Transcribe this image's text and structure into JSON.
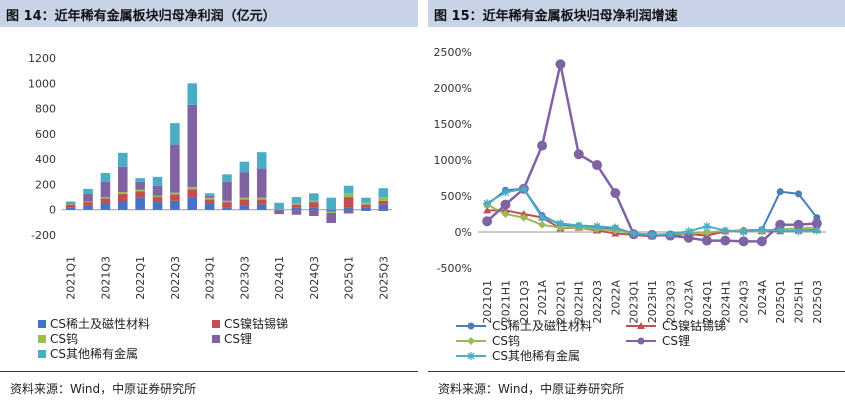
{
  "left": {
    "title": "图 14：近年稀有金属板块归母净利润（亿元）",
    "source": "资料来源：Wind，中原证券研究所"
  },
  "right": {
    "title": "图 15：近年稀有金属板块归母净利润增速",
    "source": "资料来源：Wind，中原证券研究所"
  },
  "chart_data": [
    {
      "type": "bar",
      "stacked": true,
      "unit": "亿元",
      "categories": [
        "2021Q1",
        "2021Q2",
        "2021Q3",
        "2021Q4",
        "2022Q1",
        "2022Q2",
        "2022Q3",
        "2022Q4",
        "2023Q1",
        "2023Q2",
        "2023Q3",
        "2023Q4",
        "2024Q1",
        "2024Q2",
        "2024Q3",
        "2024Q4",
        "2025Q1",
        "2025Q2",
        "2025Q3"
      ],
      "xtick_labels": [
        "2021Q1",
        "2021Q3",
        "2022Q1",
        "2022Q3",
        "2023Q1",
        "2023Q3",
        "2024Q1",
        "2024Q3",
        "2025Q1",
        "2025Q3"
      ],
      "ylim": [
        -200,
        1200
      ],
      "yticks": [
        -200,
        0,
        200,
        400,
        600,
        800,
        1000,
        1200
      ],
      "legend_position": "bottom",
      "series": [
        {
          "name": "CS稀土及磁性材料",
          "color": "#4472c4",
          "values": [
            20,
            30,
            45,
            65,
            95,
            60,
            70,
            100,
            50,
            20,
            30,
            40,
            0,
            15,
            20,
            -10,
            20,
            20,
            40
          ]
        },
        {
          "name": "CS镍钴锡锑",
          "color": "#c0504d",
          "values": [
            20,
            30,
            45,
            60,
            50,
            40,
            50,
            60,
            30,
            40,
            50,
            40,
            -5,
            25,
            40,
            -5,
            80,
            20,
            30
          ]
        },
        {
          "name": "CS钨",
          "color": "#9bbb59",
          "values": [
            5,
            5,
            10,
            15,
            15,
            10,
            15,
            20,
            15,
            10,
            15,
            15,
            5,
            10,
            10,
            -10,
            30,
            15,
            30
          ]
        },
        {
          "name": "CS锂",
          "color": "#8064a2",
          "values": [
            5,
            60,
            120,
            200,
            60,
            80,
            380,
            650,
            15,
            150,
            200,
            230,
            -30,
            -40,
            -50,
            -80,
            -30,
            -10,
            -10
          ]
        },
        {
          "name": "CS其他稀有金属",
          "color": "#4bacc6",
          "values": [
            15,
            40,
            70,
            110,
            30,
            70,
            170,
            170,
            20,
            60,
            85,
            130,
            50,
            50,
            60,
            95,
            60,
            40,
            70
          ]
        }
      ]
    },
    {
      "type": "line",
      "unit": "%",
      "categories": [
        "2021Q1",
        "2021H1",
        "2021Q3",
        "2021A",
        "2022Q1",
        "2022H1",
        "2022Q3",
        "2022A",
        "2023Q1",
        "2023H1",
        "2023Q3",
        "2023A",
        "2024Q1",
        "2024H1",
        "2024Q3",
        "2024A",
        "2025Q1",
        "2025H1",
        "2025Q3"
      ],
      "ylim": [
        -500,
        2500
      ],
      "yticks": [
        -500,
        0,
        500,
        1000,
        1500,
        2000,
        2500
      ],
      "ytick_labels": [
        "-500%",
        "0%",
        "500%",
        "1000%",
        "1500%",
        "2000%",
        "2500%"
      ],
      "legend_position": "bottom",
      "series": [
        {
          "name": "CS稀土及磁性材料",
          "color": "#4a7ebb",
          "marker": "circle",
          "values": [
            380,
            580,
            600,
            230,
            100,
            80,
            60,
            50,
            -30,
            -40,
            -50,
            -20,
            -10,
            10,
            20,
            30,
            560,
            530,
            200
          ]
        },
        {
          "name": "CS镍钴锡锑",
          "color": "#c0504d",
          "marker": "triangle",
          "values": [
            300,
            300,
            250,
            200,
            50,
            60,
            20,
            -20,
            -40,
            -60,
            -30,
            -30,
            -50,
            10,
            20,
            10,
            10,
            20,
            30
          ]
        },
        {
          "name": "CS钨",
          "color": "#9bbb59",
          "marker": "diamond",
          "values": [
            380,
            250,
            200,
            100,
            60,
            60,
            40,
            20,
            -20,
            -40,
            -30,
            -20,
            -10,
            20,
            10,
            10,
            40,
            50,
            60
          ]
        },
        {
          "name": "CS锂",
          "color": "#8064a2",
          "marker": "circle",
          "values": [
            150,
            380,
            600,
            1200,
            2330,
            1080,
            930,
            540,
            -30,
            -40,
            -50,
            -80,
            -120,
            -120,
            -130,
            -130,
            100,
            100,
            120
          ]
        },
        {
          "name": "CS其他稀有金属",
          "color": "#4bacc6",
          "marker": "star",
          "values": [
            400,
            550,
            600,
            200,
            120,
            90,
            80,
            60,
            -20,
            -40,
            -30,
            10,
            80,
            20,
            0,
            30,
            20,
            10,
            20
          ]
        }
      ]
    }
  ]
}
